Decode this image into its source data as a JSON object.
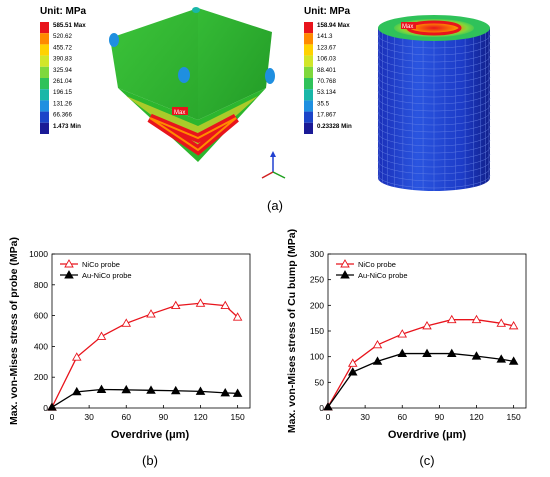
{
  "fea": {
    "left": {
      "unit_label": "Unit: MPa",
      "legend": [
        "585.51 Max",
        "520.62",
        "455.72",
        "390.83",
        "325.94",
        "261.04",
        "196.15",
        "131.26",
        "66.366",
        "1.473 Min"
      ],
      "max_marker": "Max"
    },
    "right": {
      "unit_label": "Unit: MPa",
      "legend": [
        "158.94 Max",
        "141.3",
        "123.67",
        "106.03",
        "88.401",
        "70.768",
        "53.134",
        "35.5",
        "17.867",
        "0.23328 Min"
      ],
      "max_marker": "Max"
    },
    "legend_colors": [
      "#e8141c",
      "#ff8a00",
      "#ffd200",
      "#d2e628",
      "#7fd83c",
      "#2fc25a",
      "#19b7a8",
      "#1f8fe0",
      "#1b44c8",
      "#1a1a96"
    ]
  },
  "panel_labels": {
    "a": "(a)",
    "b": "(b)",
    "c": "(c)"
  },
  "chart_data": [
    {
      "type": "line",
      "xlabel": "Overdrive (μm)",
      "ylabel": "Max. von-Mises stress of probe (MPa)",
      "xlim": [
        0,
        160
      ],
      "ylim": [
        0,
        1000
      ],
      "xticks": [
        0,
        30,
        60,
        90,
        120,
        150
      ],
      "yticks": [
        0,
        200,
        400,
        600,
        800,
        1000
      ],
      "legend_position": "top-left",
      "x": [
        0,
        20,
        40,
        60,
        80,
        100,
        120,
        140,
        150
      ],
      "series": [
        {
          "name": "NiCo probe",
          "marker": "open-triangle",
          "color": "#e8141c",
          "values": [
            5,
            330,
            465,
            550,
            610,
            665,
            680,
            665,
            590
          ]
        },
        {
          "name": "Au-NiCo probe",
          "marker": "filled-triangle",
          "color": "#000000",
          "values": [
            5,
            105,
            120,
            118,
            115,
            112,
            108,
            98,
            95
          ]
        }
      ]
    },
    {
      "type": "line",
      "xlabel": "Overdrive (μm)",
      "ylabel": "Max. von-Mises stress of Cu bump (MPa)",
      "xlim": [
        0,
        160
      ],
      "ylim": [
        0,
        300
      ],
      "xticks": [
        0,
        30,
        60,
        90,
        120,
        150
      ],
      "yticks": [
        0,
        50,
        100,
        150,
        200,
        250,
        300
      ],
      "legend_position": "top-left",
      "x": [
        0,
        20,
        40,
        60,
        80,
        100,
        120,
        140,
        150
      ],
      "series": [
        {
          "name": "NiCo probe",
          "marker": "open-triangle",
          "color": "#e8141c",
          "values": [
            2,
            87,
            123,
            144,
            160,
            172,
            172,
            165,
            160
          ]
        },
        {
          "name": "Au-NiCo probe",
          "marker": "filled-triangle",
          "color": "#000000",
          "values": [
            2,
            70,
            91,
            106,
            106,
            106,
            101,
            95,
            91
          ]
        }
      ]
    }
  ]
}
